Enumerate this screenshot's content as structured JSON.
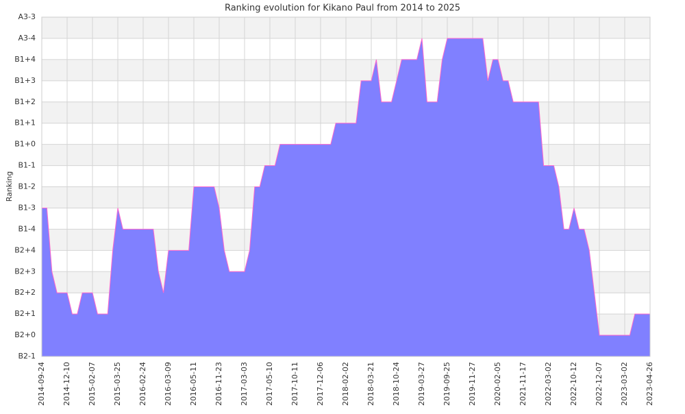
{
  "chart_data": {
    "type": "area",
    "title": "Ranking evolution for Kikano Paul from 2014 to 2025",
    "y_label": "Ranking",
    "categories": [
      "2014-09-24",
      null,
      null,
      null,
      null,
      "2014-12-10",
      null,
      null,
      null,
      null,
      "2015-02-07",
      null,
      null,
      null,
      null,
      "2015-03-25",
      null,
      null,
      null,
      null,
      "2016-02-24",
      null,
      null,
      null,
      null,
      "2016-03-09",
      null,
      null,
      null,
      null,
      "2016-05-11",
      null,
      null,
      null,
      null,
      "2016-11-23",
      null,
      null,
      null,
      null,
      "2017-03-03",
      null,
      null,
      null,
      null,
      "2017-05-10",
      null,
      null,
      null,
      null,
      "2017-10-11",
      null,
      null,
      null,
      null,
      "2017-12-06",
      null,
      null,
      null,
      null,
      "2018-02-02",
      null,
      null,
      null,
      null,
      "2018-03-21",
      null,
      null,
      null,
      null,
      "2018-10-24",
      null,
      null,
      null,
      null,
      "2019-03-27",
      null,
      null,
      null,
      null,
      "2019-09-25",
      null,
      null,
      null,
      null,
      "2019-11-27",
      null,
      null,
      null,
      null,
      "2020-02-05",
      null,
      null,
      null,
      null,
      "2021-11-17",
      null,
      null,
      null,
      null,
      "2022-03-02",
      null,
      null,
      null,
      null,
      "2022-10-12",
      null,
      null,
      null,
      null,
      "2022-12-07",
      null,
      null,
      null,
      null,
      "2023-03-02",
      null,
      null,
      null,
      null,
      "2023-04-26"
    ],
    "series": [
      {
        "name": "Ranking",
        "color": "#8080ff",
        "line_color": "#ff66cc",
        "values": [
          7,
          7,
          4,
          3,
          3,
          3,
          2,
          2,
          3,
          3,
          3,
          2,
          2,
          2,
          5,
          7,
          6,
          6,
          6,
          6,
          6,
          6,
          6,
          4,
          3,
          5,
          5,
          5,
          5,
          5,
          8,
          8,
          8,
          8,
          8,
          7,
          5,
          4,
          4,
          4,
          4,
          5,
          8,
          8,
          9,
          9,
          9,
          10,
          10,
          10,
          10,
          10,
          10,
          10,
          10,
          10,
          10,
          10,
          11,
          11,
          11,
          11,
          11,
          13,
          13,
          13,
          14,
          12,
          12,
          12,
          13,
          14,
          14,
          14,
          14,
          15,
          12,
          12,
          12,
          14,
          15,
          15,
          15,
          15,
          15,
          15,
          15,
          15,
          13,
          14,
          14,
          13,
          13,
          12,
          12,
          12,
          12,
          12,
          12,
          9,
          9,
          9,
          8,
          6,
          6,
          7,
          6,
          6,
          5,
          3,
          1,
          1,
          1,
          1,
          1,
          1,
          1,
          2,
          2,
          2,
          2
        ]
      }
    ],
    "ylim": [
      0,
      16
    ],
    "yticks": [
      {
        "value": 0,
        "label": "B2-1"
      },
      {
        "value": 1,
        "label": "B2+0"
      },
      {
        "value": 2,
        "label": "B2+1"
      },
      {
        "value": 3,
        "label": "B2+2"
      },
      {
        "value": 4,
        "label": "B2+3"
      },
      {
        "value": 5,
        "label": "B2+4"
      },
      {
        "value": 6,
        "label": "B1-4"
      },
      {
        "value": 7,
        "label": "B1-3"
      },
      {
        "value": 8,
        "label": "B1-2"
      },
      {
        "value": 9,
        "label": "B1-1"
      },
      {
        "value": 10,
        "label": "B1+0"
      },
      {
        "value": 11,
        "label": "B1+1"
      },
      {
        "value": 12,
        "label": "B1+2"
      },
      {
        "value": 13,
        "label": "B1+3"
      },
      {
        "value": 14,
        "label": "B1+4"
      },
      {
        "value": 15,
        "label": "A3-4"
      },
      {
        "value": 16,
        "label": "A3-3"
      }
    ],
    "grid": true
  }
}
